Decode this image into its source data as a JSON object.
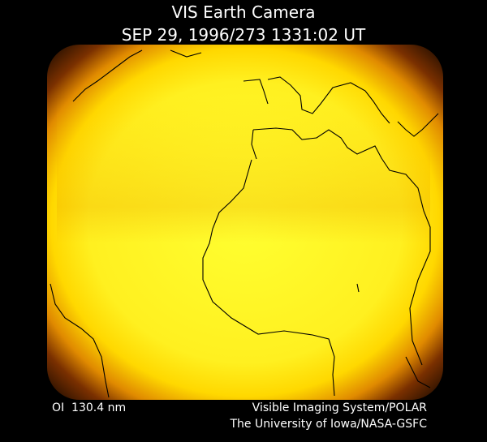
{
  "header": {
    "title": "VIS Earth Camera",
    "timestamp": "SEP 29, 1996/273 1331:02 UT"
  },
  "footer": {
    "wavelength": "OI  130.4 nm",
    "instrument": "Visible Imaging System/POLAR",
    "institution": "The University of Iowa/NASA-GSFC"
  }
}
